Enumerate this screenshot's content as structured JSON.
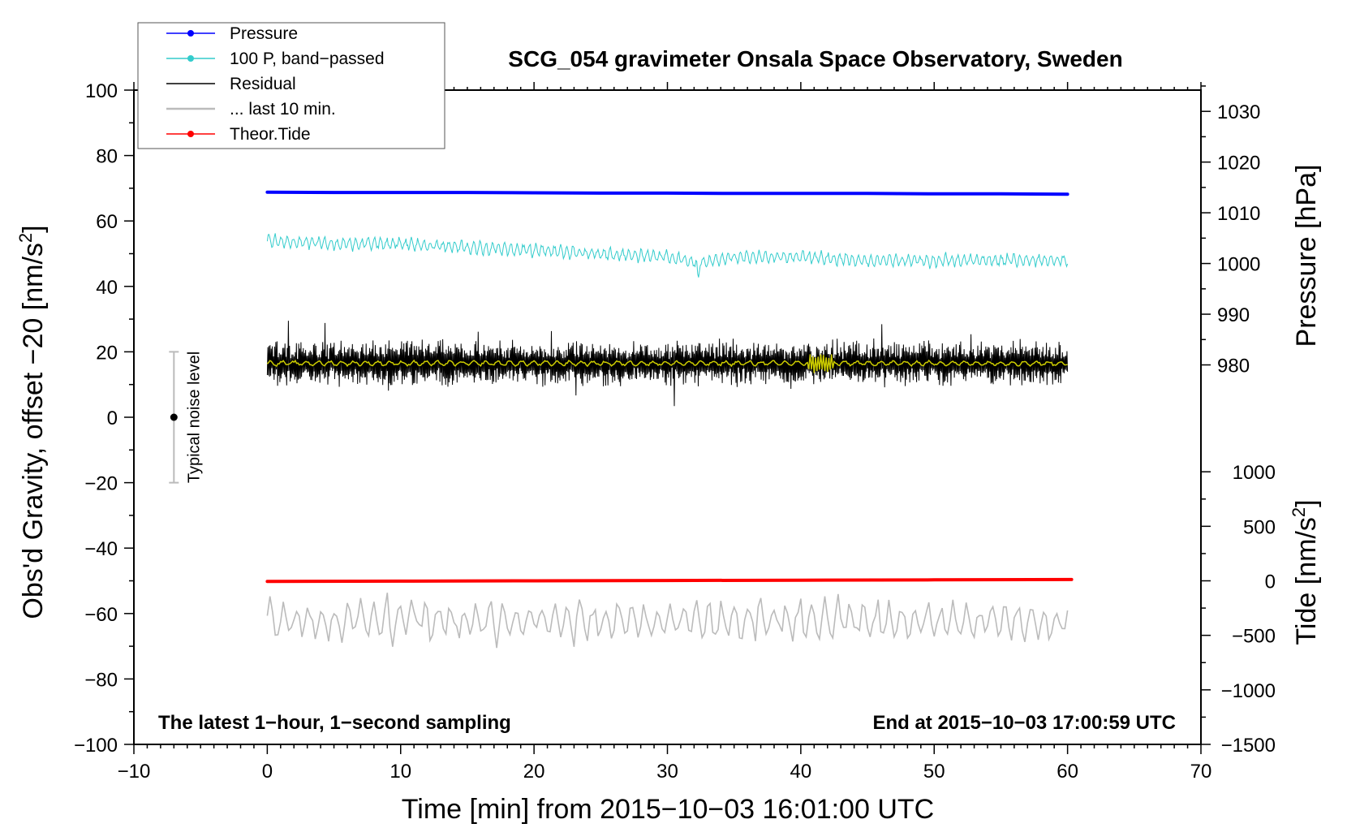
{
  "chart_data": {
    "type": "line",
    "title": "SCG_054 gravimeter Onsala Space Observatory, Sweden",
    "xlabel": "Time [min] from 2015−10−03 16:01:00 UTC",
    "ylabel": "Obs'd Gravity, offset −20 [nm/s",
    "ylabel_sup": "2",
    "ylabel_close": "]",
    "xlim": [
      -10,
      70
    ],
    "ylim": [
      -100,
      100
    ],
    "x_ticks": [
      -10,
      0,
      10,
      20,
      30,
      40,
      50,
      60,
      70
    ],
    "x_tick_labels": [
      "−10",
      "0",
      "10",
      "20",
      "30",
      "40",
      "50",
      "60",
      "70"
    ],
    "y_ticks": [
      -100,
      -80,
      -60,
      -40,
      -20,
      0,
      20,
      40,
      60,
      80,
      100
    ],
    "y_tick_labels": [
      "−100",
      "−80",
      "−60",
      "−40",
      "−20",
      "0",
      "20",
      "40",
      "60",
      "80",
      "100"
    ],
    "pressure_axis": {
      "label": "Pressure [hPa]",
      "ticks": [
        980,
        990,
        1000,
        1010,
        1020,
        1030
      ],
      "tick_labels": [
        "980",
        "990",
        "1000",
        "1010",
        "1020",
        "1030"
      ],
      "left_value": 980,
      "left_pos": 16,
      "nm_per_unit": 1.55
    },
    "tide_axis": {
      "label": "Tide [nm/s",
      "label_sup": "2",
      "label_close": "]",
      "ticks": [
        -1500,
        -1000,
        -500,
        0,
        500,
        1000
      ],
      "tick_labels": [
        "−1500",
        "−1000",
        "−500",
        "0",
        "500",
        "1000"
      ],
      "zero_pos": -50,
      "nm_per_unit": 0.03333
    },
    "notes": {
      "left": "The latest 1−hour, 1−second sampling",
      "right": "End at 2015−10−03 17:00:59 UTC"
    },
    "noise_bar": {
      "x": -7,
      "low": -20,
      "high": 20,
      "center": 0,
      "label": "Typical noise level"
    },
    "legend": [
      {
        "label": "Pressure",
        "color": "#0000ff",
        "marker": true
      },
      {
        "label": "100 P, band−passed",
        "color": "#33cccc",
        "marker": true
      },
      {
        "label": "Residual",
        "color": "#000000",
        "marker": false
      },
      {
        "label": "... last 10 min.",
        "color": "#bbbbbb",
        "marker": false
      },
      {
        "label": "Theor.Tide",
        "color": "#ff0000",
        "marker": true
      }
    ],
    "series": [
      {
        "name": "Pressure",
        "color": "#0000ff",
        "x": [
          0,
          5,
          10,
          15,
          20,
          25,
          30,
          35,
          40,
          45,
          50,
          55,
          60
        ],
        "y": [
          68.8,
          68.7,
          68.7,
          68.7,
          68.6,
          68.5,
          68.5,
          68.4,
          68.4,
          68.4,
          68.3,
          68.3,
          68.2
        ]
      },
      {
        "name": "100 P, band−passed",
        "color": "#33cccc",
        "x": [
          0,
          5,
          10,
          15,
          20,
          25,
          30,
          32.3,
          35,
          40,
          45,
          50,
          55,
          60
        ],
        "y": [
          54,
          53,
          53,
          52,
          51,
          50,
          49,
          47,
          49,
          49,
          48,
          48,
          48,
          48
        ]
      },
      {
        "name": "Residual",
        "color": "#000000",
        "x": [
          0,
          10,
          20,
          30,
          40,
          50,
          60
        ],
        "y": [
          16.5,
          16.5,
          16.5,
          16.5,
          16.5,
          16.5,
          16.5
        ],
        "amplitude": 6
      },
      {
        "name": "... last 10 min.",
        "color": "#bbbbbb",
        "x": [
          0,
          10,
          20,
          30,
          40,
          50,
          60
        ],
        "y": [
          -62,
          -62,
          -62,
          -62,
          -62,
          -62,
          -62
        ],
        "amplitude": 6
      },
      {
        "name": "Theor.Tide",
        "color": "#ff0000",
        "x": [
          0,
          10,
          20,
          30,
          40,
          50,
          60.3
        ],
        "y": [
          -50.2,
          -50.1,
          -50.0,
          -49.9,
          -49.8,
          -49.7,
          -49.6
        ]
      },
      {
        "name": "Residual smoothed",
        "color": "#cccc00",
        "x": [
          0,
          10,
          20,
          30,
          40,
          50,
          60
        ],
        "y": [
          16.5,
          16.5,
          16.5,
          16.5,
          16.5,
          16.5,
          16.5
        ]
      }
    ]
  }
}
